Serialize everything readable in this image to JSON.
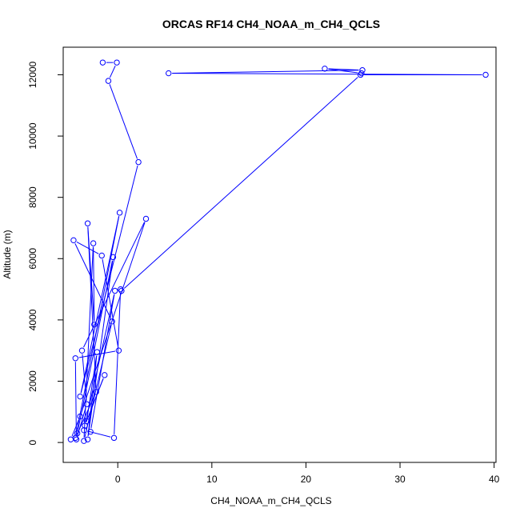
{
  "chart_data": {
    "type": "line",
    "title": "ORCAS RF14 CH4_NOAA_m_CH4_QCLS",
    "xlabel": "CH4_NOAA_m_CH4_QCLS",
    "ylabel": "Altitude (m)",
    "xlim": [
      -5.8,
      40.2
    ],
    "ylim": [
      -650,
      12900
    ],
    "x_ticks": [
      0,
      10,
      20,
      30,
      40
    ],
    "y_ticks": [
      0,
      2000,
      4000,
      6000,
      8000,
      10000,
      12000
    ],
    "grid": false,
    "legend": "none",
    "series": [
      {
        "color": "#0000ff",
        "marker": "open-circle",
        "points": [
          {
            "x": -1.6,
            "y": 12400
          },
          {
            "x": -0.1,
            "y": 12400
          },
          {
            "x": -1.0,
            "y": 11800
          },
          {
            "x": 2.2,
            "y": 9150
          },
          {
            "x": -4.0,
            "y": 1500
          },
          {
            "x": 0.2,
            "y": 7500
          },
          {
            "x": -4.5,
            "y": 150
          },
          {
            "x": -2.3,
            "y": 1650
          },
          {
            "x": -3.2,
            "y": 7150
          },
          {
            "x": -2.5,
            "y": 3850
          },
          {
            "x": -2.6,
            "y": 6500
          },
          {
            "x": -3.6,
            "y": 50
          },
          {
            "x": -0.6,
            "y": 3950
          },
          {
            "x": -4.7,
            "y": 6600
          },
          {
            "x": -1.7,
            "y": 6100
          },
          {
            "x": 0.1,
            "y": 3000
          },
          {
            "x": -4.5,
            "y": 2750
          },
          {
            "x": -4.4,
            "y": 100
          },
          {
            "x": -3.3,
            "y": 1250
          },
          {
            "x": -3.8,
            "y": 3000
          },
          {
            "x": 3.0,
            "y": 7300
          },
          {
            "x": -4.0,
            "y": 850
          },
          {
            "x": -5.0,
            "y": 100
          },
          {
            "x": -4.3,
            "y": 300
          },
          {
            "x": -0.5,
            "y": 6050
          },
          {
            "x": -3.2,
            "y": 100
          },
          {
            "x": -2.2,
            "y": 2950
          },
          {
            "x": -3.3,
            "y": 700
          },
          {
            "x": -1.4,
            "y": 2200
          },
          {
            "x": -3.5,
            "y": 550
          },
          {
            "x": -0.3,
            "y": 4950
          },
          {
            "x": -2.9,
            "y": 350
          },
          {
            "x": -3.6,
            "y": 400
          },
          {
            "x": -0.4,
            "y": 150
          },
          {
            "x": 0.3,
            "y": 5000
          },
          {
            "x": 0.4,
            "y": 4950
          },
          {
            "x": 25.8,
            "y": 12000
          },
          {
            "x": 39.1,
            "y": 12000
          },
          {
            "x": 5.4,
            "y": 12050
          },
          {
            "x": 26.0,
            "y": 12150
          },
          {
            "x": 22.0,
            "y": 12200
          },
          {
            "x": 25.9,
            "y": 12050
          }
        ]
      }
    ]
  }
}
